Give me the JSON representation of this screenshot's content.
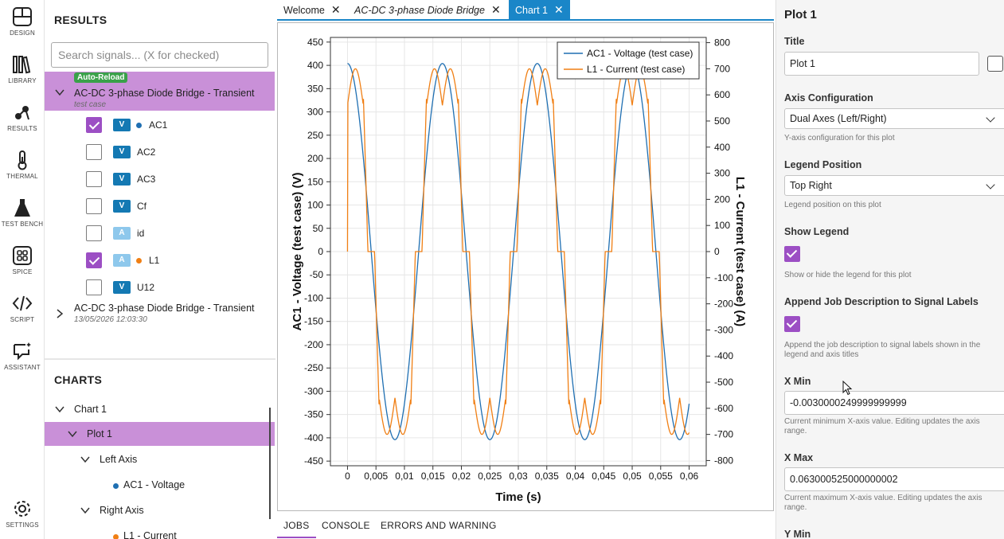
{
  "activity_bar": [
    {
      "label": "DESIGN",
      "icon": "design-icon"
    },
    {
      "label": "LIBRARY",
      "icon": "library-icon"
    },
    {
      "label": "RESULTS",
      "icon": "results-icon"
    },
    {
      "label": "THERMAL",
      "icon": "thermometer-icon"
    },
    {
      "label": "TEST BENCH",
      "icon": "flask-icon"
    },
    {
      "label": "SPICE",
      "icon": "spice-grid-icon"
    },
    {
      "label": "SCRIPT",
      "icon": "code-icon"
    },
    {
      "label": "ASSISTANT",
      "icon": "assistant-chat-icon"
    },
    {
      "label": "SETTINGS",
      "icon": "gear-icon"
    }
  ],
  "results": {
    "title": "RESULTS",
    "search_placeholder": "Search signals... (X for checked)",
    "jobs": [
      {
        "badge": "Auto-Reload",
        "title": "AC-DC 3-phase Diode Bridge - Transient",
        "subtitle": "test case",
        "expanded": true,
        "signals": [
          {
            "type": "V",
            "name": "AC1",
            "checked": true,
            "dot_color": "#1f6fb2"
          },
          {
            "type": "V",
            "name": "AC2",
            "checked": false
          },
          {
            "type": "V",
            "name": "AC3",
            "checked": false
          },
          {
            "type": "V",
            "name": "Cf",
            "checked": false
          },
          {
            "type": "A",
            "name": "id",
            "checked": false
          },
          {
            "type": "A",
            "name": "L1",
            "checked": true,
            "dot_color": "#f07f14"
          },
          {
            "type": "V",
            "name": "U12",
            "checked": false
          }
        ]
      },
      {
        "title": "AC-DC 3-phase Diode Bridge - Transient",
        "subtitle": "13/05/2026 12:03:30",
        "expanded": false
      }
    ]
  },
  "charts": {
    "title": "CHARTS",
    "tree": {
      "chart": "Chart 1",
      "plot": "Plot 1",
      "left_axis": "Left Axis",
      "left_signal": "AC1 - Voltage",
      "right_axis": "Right Axis",
      "right_signal": "L1 - Current"
    }
  },
  "tabs": [
    {
      "label": "Welcome",
      "active": false,
      "italic": false
    },
    {
      "label": "AC-DC 3-phase Diode Bridge",
      "active": false,
      "italic": true
    },
    {
      "label": "Chart 1",
      "active": true,
      "italic": false
    }
  ],
  "bottom_tabs": [
    {
      "label": "JOBS",
      "active": true
    },
    {
      "label": "CONSOLE",
      "active": false
    },
    {
      "label": "ERRORS AND WARNING",
      "active": false
    }
  ],
  "chart_data": {
    "type": "line",
    "xlabel": "Time (s)",
    "ylabel_left": "AC1 - Voltage (test case) (V)",
    "ylabel_right": "L1 - Current (test case) (A)",
    "xlim": [
      -0.003,
      0.063
    ],
    "ylim_left": [
      -460,
      460
    ],
    "ylim_right": [
      -820,
      820
    ],
    "x_ticks": [
      "0",
      "0,005",
      "0,01",
      "0,015",
      "0,02",
      "0,025",
      "0,03",
      "0,035",
      "0,04",
      "0,045",
      "0,05",
      "0,055",
      "0,06"
    ],
    "y_left_ticks": [
      450,
      400,
      350,
      300,
      250,
      200,
      150,
      100,
      50,
      0,
      -50,
      -100,
      -150,
      -200,
      -250,
      -300,
      -350,
      -400,
      -450
    ],
    "y_right_ticks": [
      800,
      700,
      600,
      500,
      400,
      300,
      200,
      100,
      0,
      -100,
      -200,
      -300,
      -400,
      -500,
      -600,
      -700,
      -800
    ],
    "grid": true,
    "legend_position": "top-right",
    "series": [
      {
        "name": "AC1 - Voltage (test case)",
        "axis": "left",
        "color": "#1f6fb2",
        "description_values": {
          "amplitude": 404,
          "frequency_hz": 60,
          "phase_at_t0_deg": 90
        }
      },
      {
        "name": "L1 - Current (test case)",
        "axis": "right",
        "color": "#f07f14",
        "description_values": {
          "peak": 700,
          "flat_zero_band": true
        }
      }
    ]
  },
  "properties": {
    "title": "Plot 1",
    "title_label": "Title",
    "title_value": "Plot 1",
    "axis_config_label": "Axis Configuration",
    "axis_config_value": "Dual Axes (Left/Right)",
    "axis_config_help": "Y-axis configuration for this plot",
    "legend_pos_label": "Legend Position",
    "legend_pos_value": "Top Right",
    "legend_pos_help": "Legend position on this plot",
    "show_legend_label": "Show Legend",
    "show_legend_help": "Show or hide the legend for this plot",
    "append_label": "Append Job Description to Signal Labels",
    "append_help": "Append the job description to signal labels shown in the legend and axis titles",
    "xmin_label": "X Min",
    "xmin_value": "-0.0030000249999999999",
    "xmin_help": "Current minimum X-axis value. Editing updates the axis range.",
    "xmax_label": "X Max",
    "xmax_value": "0.063000525000000002",
    "xmax_help": "Current maximum X-axis value. Editing updates the axis range.",
    "ymin_label": "Y Min"
  }
}
